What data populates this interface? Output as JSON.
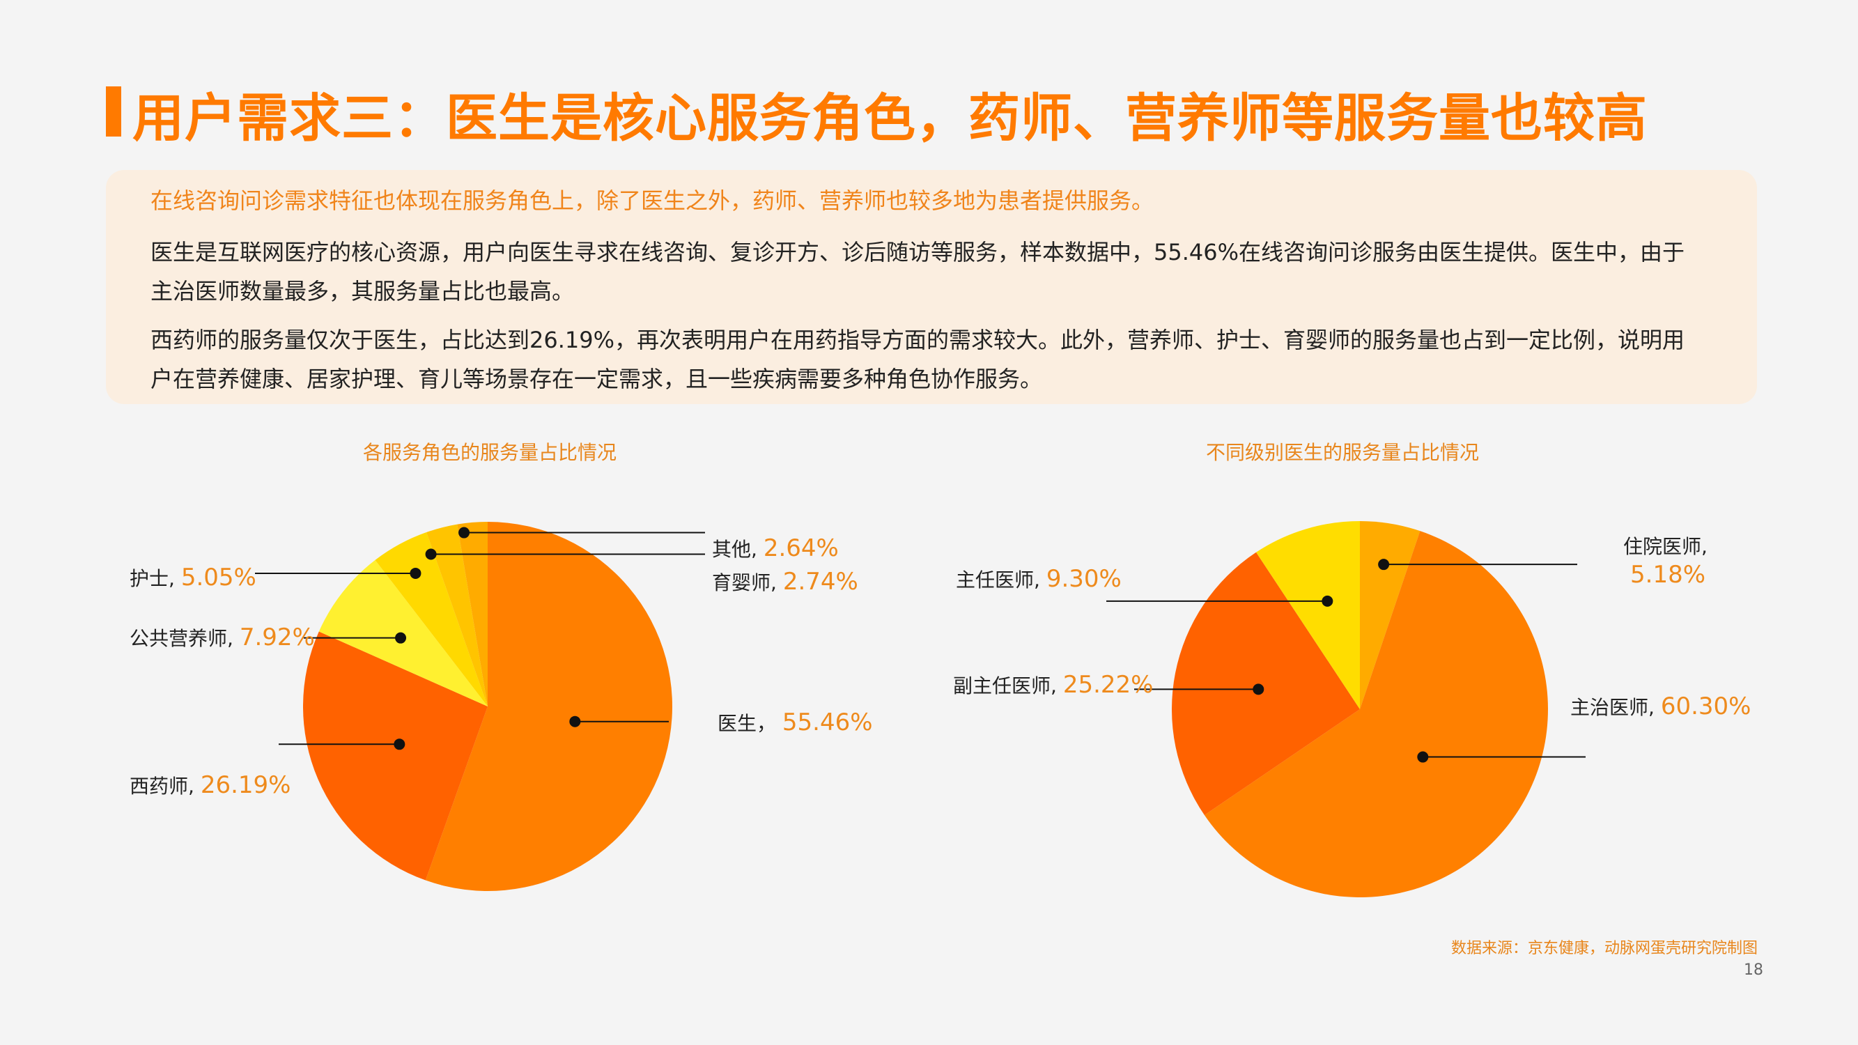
{
  "page": {
    "title": "用户需求三：医生是核心服务角色，药师、营养师等服务量也较高",
    "summary": {
      "lead": "在线咨询问诊需求特征也体现在服务角色上，除了医生之外，药师、营养师也较多地为患者提供服务。",
      "paragraph1": "医生是互联网医疗的核心资源，用户向医生寻求在线咨询、复诊开方、诊后随访等服务，样本数据中，55.46%在线咨询问诊服务由医生提供。医生中，由于主治医师数量最多，其服务量占比也最高。",
      "paragraph2": "西药师的服务量仅次于医生，占比达到26.19%，再次表明用户在用药指导方面的需求较大。此外，营养师、护士、育婴师的服务量也占到一定比例，说明用户在营养健康、居家护理、育儿等场景存在一定需求，且一些疾病需要多种角色协作服务。"
    },
    "source": "数据来源：京东健康，动脉网蛋壳研究院制图",
    "page_number": "18",
    "colors": {
      "accent": "#ff7a00",
      "box_bg": "#fbeee0"
    }
  },
  "chart_data": [
    {
      "type": "pie",
      "title": "各服务角色的服务量占比情况",
      "slices": [
        {
          "name": "医生",
          "label_name": "医生，",
          "value": 55.46,
          "label_value": "55.46%",
          "color": "#ff7f00"
        },
        {
          "name": "西药师",
          "label_name": "西药师,",
          "value": 26.19,
          "label_value": "26.19%",
          "color": "#ff6200"
        },
        {
          "name": "公共营养师",
          "label_name": "公共营养师,",
          "value": 7.92,
          "label_value": "7.92%",
          "color": "#fff030"
        },
        {
          "name": "护士",
          "label_name": "护士,",
          "value": 5.05,
          "label_value": "5.05%",
          "color": "#ffd900"
        },
        {
          "name": "育婴师",
          "label_name": "育婴师,",
          "value": 2.74,
          "label_value": "2.74%",
          "color": "#ffc400"
        },
        {
          "name": "其他",
          "label_name": "其他,",
          "value": 2.64,
          "label_value": "2.64%",
          "color": "#ffab00"
        }
      ]
    },
    {
      "type": "pie",
      "title": "不同级别医生的服务量占比情况",
      "slices": [
        {
          "name": "住院医师",
          "label_name": "住院医师,",
          "value": 5.18,
          "label_value": "5.18%",
          "color": "#ffab00"
        },
        {
          "name": "主治医师",
          "label_name": "主治医师,",
          "value": 60.3,
          "label_value": "60.30%",
          "color": "#ff8000"
        },
        {
          "name": "副主任医师",
          "label_name": "副主任医师,",
          "value": 25.22,
          "label_value": "25.22%",
          "color": "#ff6200"
        },
        {
          "name": "主任医师",
          "label_name": "主任医师,",
          "value": 9.3,
          "label_value": "9.30%",
          "color": "#ffdd00"
        }
      ]
    }
  ]
}
